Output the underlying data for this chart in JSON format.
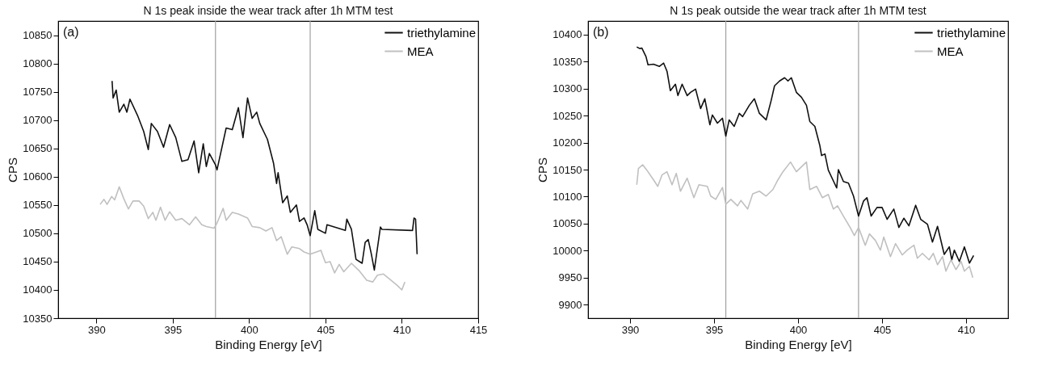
{
  "chart_data": [
    {
      "type": "line",
      "title": "N 1s peak inside the wear track after 1h MTM test",
      "xlabel": "Binding Energy [eV]",
      "ylabel": "CPS",
      "xlim": [
        387.5,
        415
      ],
      "xticks": [
        390,
        395,
        400,
        405,
        410,
        415
      ],
      "ylim": [
        10350,
        10875
      ],
      "yticks": [
        10350,
        10400,
        10450,
        10500,
        10550,
        10600,
        10650,
        10700,
        10750,
        10800,
        10850
      ],
      "legend": "top right",
      "annotations": [
        "(a)"
      ],
      "ref_lines": [
        {
          "axis": "x",
          "value": 397.8,
          "color": "#a0a0a0"
        },
        {
          "axis": "x",
          "value": 404.0,
          "color": "#a0a0a0"
        }
      ],
      "series": [
        {
          "name": "triethylamine",
          "color": "#111111",
          "x": [
            391.03,
            391.1,
            391.3,
            391.5,
            391.8,
            392.0,
            392.2,
            392.7,
            393.1,
            393.4,
            393.6,
            394.0,
            394.4,
            394.8,
            395.2,
            395.6,
            396.0,
            396.4,
            396.7,
            397.0,
            397.2,
            397.4,
            397.8,
            397.9,
            398.5,
            398.9,
            399.3,
            399.6,
            399.9,
            400.2,
            400.5,
            400.7,
            401.2,
            401.6,
            401.8,
            401.9,
            402.2,
            402.5,
            402.7,
            403.1,
            403.3,
            403.6,
            403.8,
            404.0,
            404.3,
            404.5,
            405.0,
            405.1,
            406.3,
            406.4,
            406.7,
            407.0,
            407.4,
            407.6,
            407.8,
            408.0,
            408.2,
            408.6,
            408.7,
            410.7,
            410.8,
            410.9,
            411.0
          ],
          "values": [
            10769,
            10739,
            10753,
            10714,
            10728,
            10714,
            10737,
            10708,
            10680,
            10648,
            10694,
            10680,
            10652,
            10692,
            10669,
            10627,
            10630,
            10663,
            10607,
            10658,
            10618,
            10641,
            10621,
            10612,
            10686,
            10683,
            10722,
            10669,
            10739,
            10703,
            10714,
            10694,
            10666,
            10624,
            10588,
            10607,
            10554,
            10566,
            10537,
            10550,
            10521,
            10527,
            10515,
            10496,
            10540,
            10507,
            10500,
            10515,
            10505,
            10525,
            10507,
            10454,
            10447,
            10484,
            10489,
            10464,
            10435,
            10511,
            10507,
            10505,
            10527,
            10525,
            10463
          ]
        },
        {
          "name": "MEA",
          "color": "#c0c0c0",
          "x": [
            390.25,
            390.5,
            390.7,
            391.0,
            391.2,
            391.5,
            391.8,
            392.1,
            392.4,
            392.8,
            393.1,
            393.4,
            393.7,
            393.9,
            394.2,
            394.5,
            394.8,
            395.2,
            395.6,
            396.1,
            396.5,
            396.9,
            397.2,
            397.7,
            397.9,
            398.3,
            398.5,
            398.9,
            399.3,
            399.9,
            400.2,
            400.7,
            401.1,
            401.5,
            401.8,
            402.1,
            402.5,
            402.8,
            403.3,
            403.6,
            404.0,
            404.7,
            405.0,
            405.3,
            405.6,
            405.9,
            406.2,
            406.7,
            407.2,
            407.7,
            408.1,
            408.4,
            408.8,
            409.3,
            409.7,
            410.0,
            410.2
          ],
          "values": [
            10551,
            10560,
            10551,
            10565,
            10559,
            10582,
            10561,
            10543,
            10557,
            10557,
            10548,
            10526,
            10537,
            10523,
            10546,
            10523,
            10538,
            10523,
            10526,
            10515,
            10529,
            10515,
            10512,
            10509,
            10518,
            10544,
            10523,
            10537,
            10534,
            10527,
            10512,
            10510,
            10504,
            10510,
            10487,
            10494,
            10463,
            10476,
            10473,
            10467,
            10463,
            10470,
            10448,
            10450,
            10430,
            10445,
            10432,
            10447,
            10434,
            10417,
            10414,
            10426,
            10428,
            10417,
            10408,
            10400,
            10414
          ]
        }
      ]
    },
    {
      "type": "line",
      "title": "N 1s peak outside the wear track after 1h MTM test",
      "xlabel": "Binding Energy [eV]",
      "ylabel": "CPS",
      "xlim": [
        387.5,
        412.5
      ],
      "xticks": [
        390,
        395,
        400,
        405,
        410
      ],
      "ylim": [
        9875,
        10425
      ],
      "yticks": [
        9900,
        9950,
        10000,
        10050,
        10100,
        10150,
        10200,
        10250,
        10300,
        10350,
        10400
      ],
      "legend": "top right",
      "annotations": [
        "(b)"
      ],
      "ref_lines": [
        {
          "axis": "x",
          "value": 395.7,
          "color": "#a0a0a0"
        },
        {
          "axis": "x",
          "value": 403.6,
          "color": "#a0a0a0"
        }
      ],
      "series": [
        {
          "name": "triethylamine",
          "color": "#111111",
          "x": [
            390.4,
            390.58,
            390.7,
            390.95,
            391.07,
            391.4,
            391.75,
            392.0,
            392.2,
            392.4,
            392.7,
            392.85,
            393.1,
            393.4,
            393.6,
            393.9,
            394.2,
            394.45,
            394.75,
            394.9,
            395.2,
            395.5,
            395.7,
            395.9,
            396.2,
            396.5,
            396.7,
            397.1,
            397.4,
            397.7,
            398.1,
            398.4,
            398.6,
            398.9,
            399.2,
            399.4,
            399.6,
            399.9,
            400.2,
            400.5,
            400.7,
            401.0,
            401.3,
            401.4,
            401.6,
            401.8,
            402.3,
            402.4,
            402.7,
            403.0,
            403.3,
            403.6,
            403.9,
            404.1,
            404.35,
            404.7,
            405.0,
            405.3,
            405.7,
            406.0,
            406.3,
            406.6,
            407.0,
            407.3,
            407.7,
            408.0,
            408.3,
            408.7,
            409.0,
            409.15,
            409.3,
            409.6,
            409.9,
            410.2,
            410.45
          ],
          "values": [
            10377,
            10374,
            10375,
            10359,
            10344,
            10345,
            10341,
            10347,
            10332,
            10296,
            10308,
            10287,
            10308,
            10287,
            10293,
            10299,
            10263,
            10281,
            10233,
            10251,
            10236,
            10245,
            10212,
            10242,
            10230,
            10254,
            10248,
            10269,
            10281,
            10254,
            10242,
            10278,
            10305,
            10314,
            10320,
            10314,
            10320,
            10293,
            10284,
            10269,
            10239,
            10230,
            10194,
            10176,
            10179,
            10149,
            10116,
            10150,
            10128,
            10125,
            10101,
            10064,
            10092,
            10098,
            10064,
            10080,
            10080,
            10058,
            10077,
            10043,
            10060,
            10046,
            10084,
            10058,
            10049,
            10016,
            10045,
            9993,
            10007,
            9983,
            10001,
            9980,
            10007,
            9977,
            9991
          ]
        },
        {
          "name": "MEA",
          "color": "#c0c0c0",
          "x": [
            390.4,
            390.5,
            390.75,
            391.0,
            391.4,
            391.65,
            391.9,
            392.2,
            392.5,
            392.75,
            393.0,
            393.4,
            393.8,
            394.1,
            394.6,
            394.8,
            395.1,
            395.5,
            395.7,
            396.0,
            396.4,
            396.6,
            397.0,
            397.3,
            397.7,
            398.1,
            398.5,
            398.8,
            399.1,
            399.55,
            399.9,
            400.2,
            400.5,
            400.7,
            401.1,
            401.45,
            401.8,
            402.1,
            402.35,
            402.7,
            403.1,
            403.35,
            403.6,
            404.0,
            404.25,
            404.6,
            404.9,
            405.1,
            405.5,
            405.8,
            406.2,
            406.5,
            406.9,
            407.1,
            407.4,
            407.8,
            408.05,
            408.3,
            408.6,
            408.8,
            409.1,
            409.4,
            409.7,
            409.9,
            410.2,
            410.4
          ],
          "values": [
            10122,
            10152,
            10159,
            10149,
            10131,
            10119,
            10140,
            10146,
            10122,
            10143,
            10110,
            10134,
            10098,
            10122,
            10119,
            10101,
            10095,
            10117,
            10086,
            10095,
            10083,
            10093,
            10077,
            10105,
            10110,
            10101,
            10113,
            10131,
            10146,
            10164,
            10146,
            10155,
            10164,
            10113,
            10119,
            10098,
            10104,
            10077,
            10083,
            10064,
            10043,
            10028,
            10043,
            10010,
            10031,
            10019,
            10001,
            10025,
            9989,
            10013,
            9992,
            10001,
            10010,
            9986,
            9995,
            9983,
            9995,
            9974,
            9989,
            9962,
            9983,
            9965,
            9980,
            9962,
            9971,
            9950
          ]
        }
      ]
    }
  ]
}
